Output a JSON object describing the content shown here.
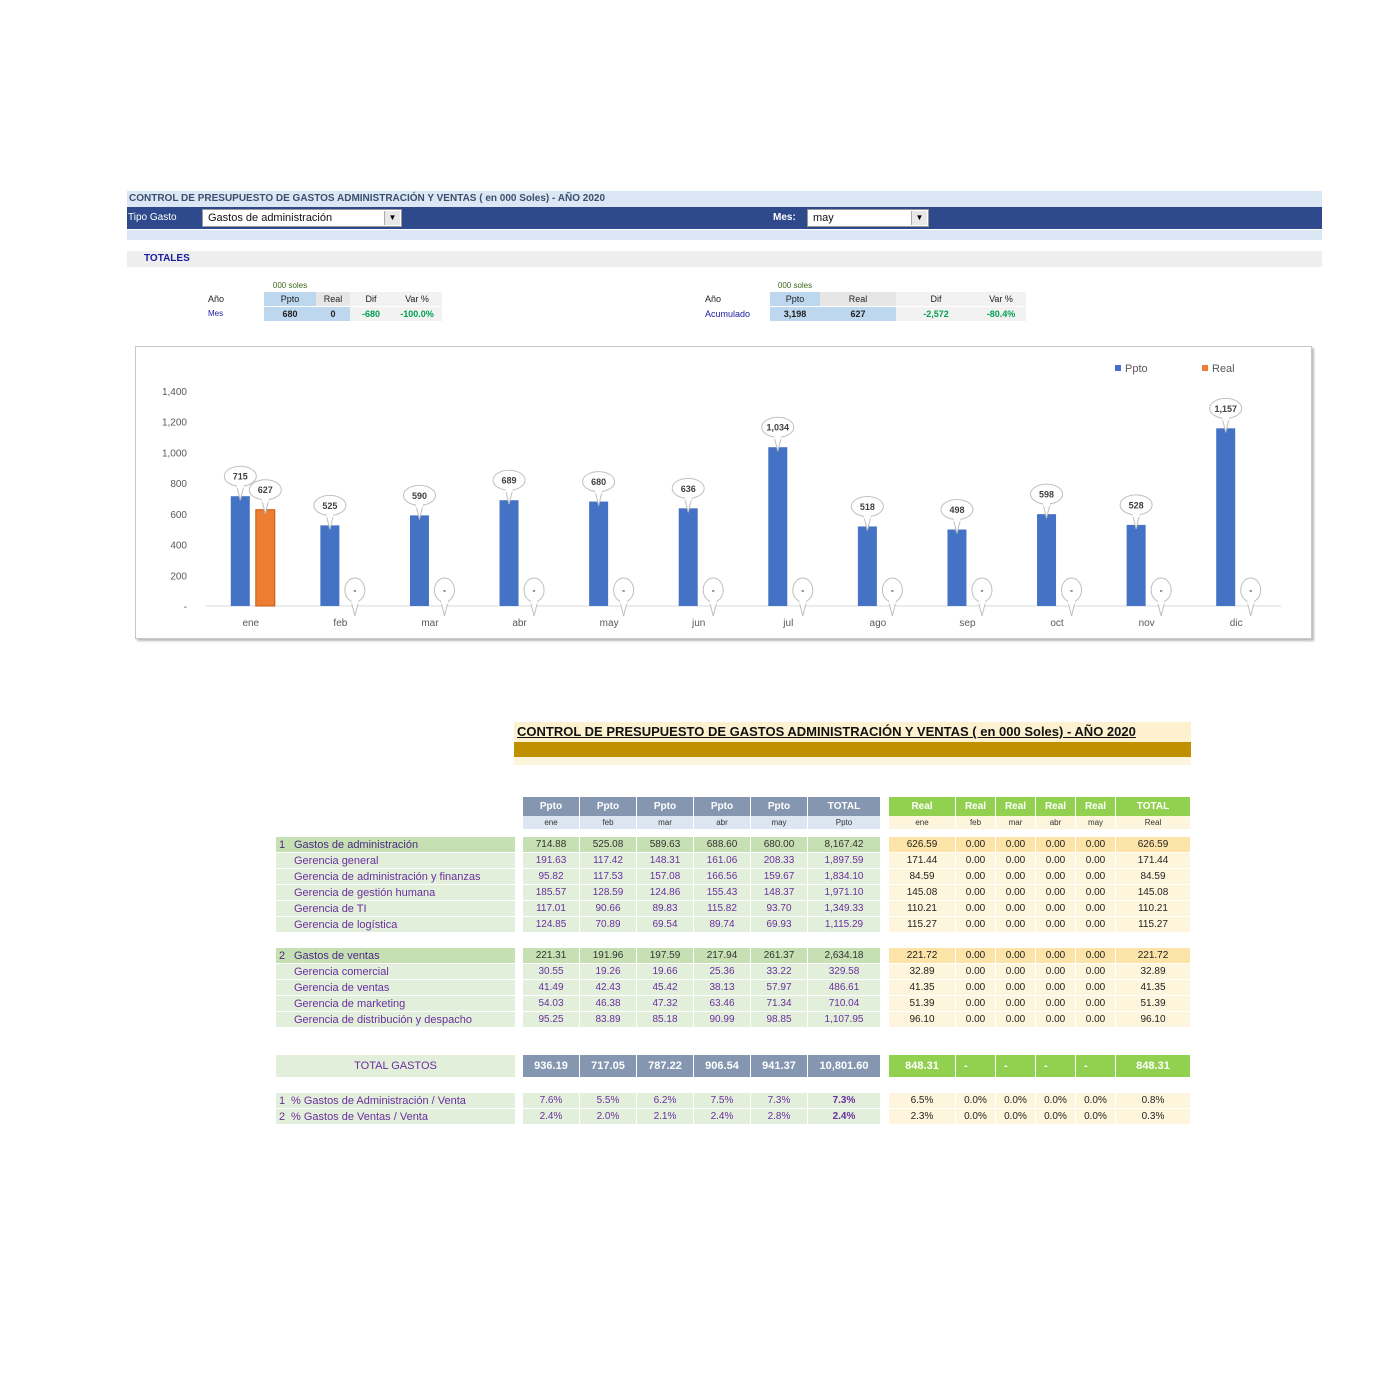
{
  "dashboard": {
    "title": "CONTROL DE PRESUPUESTO DE GASTOS ADMINISTRACIÓN Y VENTAS ( en 000 Soles) - AÑO 2020",
    "tipo_gasto_label": "Tipo Gasto",
    "tipo_gasto_value": "Gastos de administración",
    "mes_label": "Mes:",
    "mes_value": "may",
    "dropdown_arrow": "▼",
    "totales_label": "TOTALES"
  },
  "summary_mes": {
    "unit": "000 soles",
    "col_anio": "Año",
    "col_ppto": "Ppto",
    "col_real": "Real",
    "col_dif": "Dif",
    "col_var": "Var %",
    "row_label": "Mes",
    "ppto": "680",
    "real": "0",
    "dif": "-680",
    "var": "-100.0%"
  },
  "summary_acum": {
    "unit": "000 soles",
    "col_anio": "Año",
    "col_ppto": "Ppto",
    "col_real": "Real",
    "col_dif": "Dif",
    "col_var": "Var %",
    "row_label": "Acumulado",
    "ppto": "3,198",
    "real": "627",
    "dif": "-2,572",
    "var": "-80.4%"
  },
  "chart_data": {
    "type": "bar",
    "categories": [
      "ene",
      "feb",
      "mar",
      "abr",
      "may",
      "jun",
      "jul",
      "ago",
      "sep",
      "oct",
      "nov",
      "dic"
    ],
    "series": [
      {
        "name": "Ppto",
        "color": "#4472c4",
        "values": [
          715,
          525,
          590,
          689,
          680,
          636,
          1034,
          518,
          498,
          598,
          528,
          1157
        ],
        "labels": [
          "715",
          "525",
          "590",
          "689",
          "680",
          "636",
          "1,034",
          "518",
          "498",
          "598",
          "528",
          "1,157"
        ]
      },
      {
        "name": "Real",
        "color": "#ed7d31",
        "values": [
          627,
          0,
          0,
          0,
          0,
          0,
          0,
          0,
          0,
          0,
          0,
          0
        ],
        "labels": [
          "627",
          "-",
          "-",
          "-",
          "-",
          "-",
          "-",
          "-",
          "-",
          "-",
          "-",
          "-"
        ]
      }
    ],
    "ylim": [
      0,
      1400
    ],
    "yticks": [
      0,
      200,
      400,
      600,
      800,
      1000,
      1200,
      1400
    ],
    "ytick_labels": [
      "-",
      "200",
      "400",
      "600",
      "800",
      "1,000",
      "1,200",
      "1,400"
    ],
    "legend_position": "top-right",
    "grid": false
  },
  "report": {
    "title": "CONTROL DE PRESUPUESTO DE GASTOS ADMINISTRACIÓN Y VENTAS ( en 000 Soles) - AÑO 2020",
    "ppto_headers": [
      "Ppto",
      "Ppto",
      "Ppto",
      "Ppto",
      "Ppto",
      "TOTAL"
    ],
    "ppto_sub": [
      "ene",
      "feb",
      "mar",
      "abr",
      "may",
      "Ppto"
    ],
    "real_headers": [
      "Real",
      "Real",
      "Real",
      "Real",
      "Real",
      "TOTAL"
    ],
    "real_sub": [
      "ene",
      "feb",
      "mar",
      "abr",
      "may",
      "Real"
    ],
    "rows": [
      {
        "num": "1",
        "label": "Gastos de administración",
        "group": true,
        "ppto": [
          "714.88",
          "525.08",
          "589.63",
          "688.60",
          "680.00",
          "8,167.42"
        ],
        "real": [
          "626.59",
          "0.00",
          "0.00",
          "0.00",
          "0.00",
          "626.59"
        ]
      },
      {
        "num": "",
        "label": "Gerencia general",
        "group": false,
        "ppto": [
          "191.63",
          "117.42",
          "148.31",
          "161.06",
          "208.33",
          "1,897.59"
        ],
        "real": [
          "171.44",
          "0.00",
          "0.00",
          "0.00",
          "0.00",
          "171.44"
        ]
      },
      {
        "num": "",
        "label": "Gerencia de administración y finanzas",
        "group": false,
        "ppto": [
          "95.82",
          "117.53",
          "157.08",
          "166.56",
          "159.67",
          "1,834.10"
        ],
        "real": [
          "84.59",
          "0.00",
          "0.00",
          "0.00",
          "0.00",
          "84.59"
        ]
      },
      {
        "num": "",
        "label": "Gerencia de gestión humana",
        "group": false,
        "ppto": [
          "185.57",
          "128.59",
          "124.86",
          "155.43",
          "148.37",
          "1,971.10"
        ],
        "real": [
          "145.08",
          "0.00",
          "0.00",
          "0.00",
          "0.00",
          "145.08"
        ]
      },
      {
        "num": "",
        "label": "Gerencia de TI",
        "group": false,
        "ppto": [
          "117.01",
          "90.66",
          "89.83",
          "115.82",
          "93.70",
          "1,349.33"
        ],
        "real": [
          "110.21",
          "0.00",
          "0.00",
          "0.00",
          "0.00",
          "110.21"
        ]
      },
      {
        "num": "",
        "label": "Gerencia de logística",
        "group": false,
        "ppto": [
          "124.85",
          "70.89",
          "69.54",
          "89.74",
          "69.93",
          "1,115.29"
        ],
        "real": [
          "115.27",
          "0.00",
          "0.00",
          "0.00",
          "0.00",
          "115.27"
        ]
      }
    ],
    "rows2": [
      {
        "num": "2",
        "label": "Gastos de ventas",
        "group": true,
        "ppto": [
          "221.31",
          "191.96",
          "197.59",
          "217.94",
          "261.37",
          "2,634.18"
        ],
        "real": [
          "221.72",
          "0.00",
          "0.00",
          "0.00",
          "0.00",
          "221.72"
        ]
      },
      {
        "num": "",
        "label": "Gerencia comercial",
        "group": false,
        "ppto": [
          "30.55",
          "19.26",
          "19.66",
          "25.36",
          "33.22",
          "329.58"
        ],
        "real": [
          "32.89",
          "0.00",
          "0.00",
          "0.00",
          "0.00",
          "32.89"
        ]
      },
      {
        "num": "",
        "label": "Gerencia de ventas",
        "group": false,
        "ppto": [
          "41.49",
          "42.43",
          "45.42",
          "38.13",
          "57.97",
          "486.61"
        ],
        "real": [
          "41.35",
          "0.00",
          "0.00",
          "0.00",
          "0.00",
          "41.35"
        ]
      },
      {
        "num": "",
        "label": "Gerencia de marketing",
        "group": false,
        "ppto": [
          "54.03",
          "46.38",
          "47.32",
          "63.46",
          "71.34",
          "710.04"
        ],
        "real": [
          "51.39",
          "0.00",
          "0.00",
          "0.00",
          "0.00",
          "51.39"
        ]
      },
      {
        "num": "",
        "label": "Gerencia de distribución y despacho",
        "group": false,
        "ppto": [
          "95.25",
          "83.89",
          "85.18",
          "90.99",
          "98.85",
          "1,107.95"
        ],
        "real": [
          "96.10",
          "0.00",
          "0.00",
          "0.00",
          "0.00",
          "96.10"
        ]
      }
    ],
    "total": {
      "label": "TOTAL GASTOS",
      "ppto": [
        "936.19",
        "717.05",
        "787.22",
        "906.54",
        "941.37",
        "10,801.60"
      ],
      "real": [
        "848.31",
        "-",
        "-",
        "-",
        "-",
        "848.31"
      ]
    },
    "ratios": [
      {
        "num": "1",
        "label": "% Gastos de Administración / Venta",
        "ppto": [
          "7.6%",
          "5.5%",
          "6.2%",
          "7.5%",
          "7.3%",
          "7.3%"
        ],
        "real": [
          "6.5%",
          "0.0%",
          "0.0%",
          "0.0%",
          "0.0%",
          "0.8%"
        ]
      },
      {
        "num": "2",
        "label": "% Gastos de Ventas / Venta",
        "ppto": [
          "2.4%",
          "2.0%",
          "2.1%",
          "2.4%",
          "2.8%",
          "2.4%"
        ],
        "real": [
          "2.3%",
          "0.0%",
          "0.0%",
          "0.0%",
          "0.0%",
          "0.3%"
        ]
      }
    ]
  }
}
